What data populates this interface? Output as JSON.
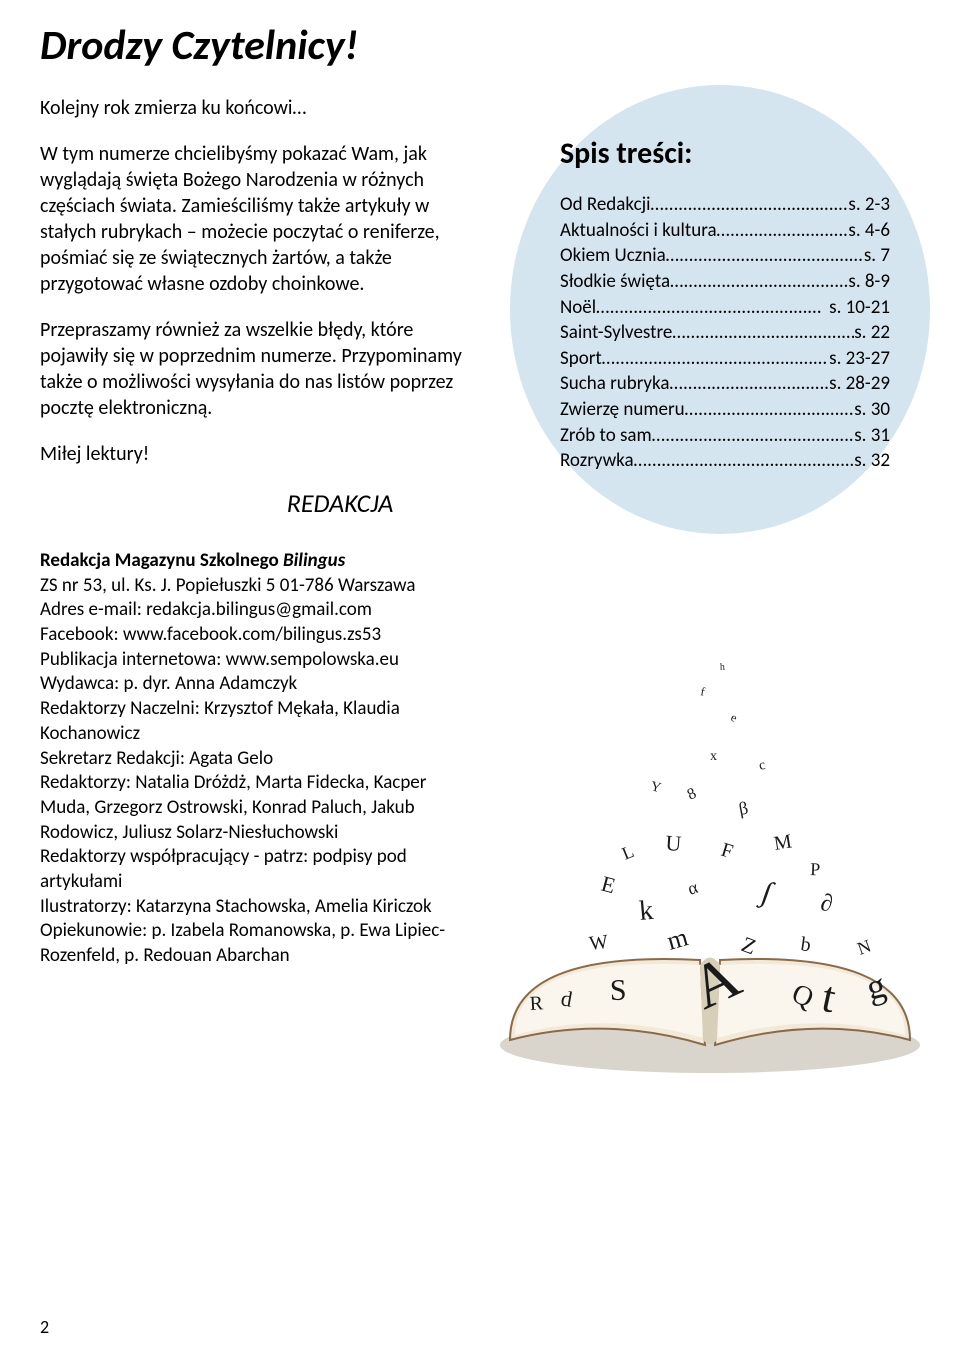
{
  "header": {
    "title": "Drodzy Czytelnicy!"
  },
  "intro": {
    "p1": "Kolejny rok zmierza ku końcowi…",
    "p2": "W tym numerze chcielibyśmy pokazać Wam, jak wyglądają święta Bożego Narodzenia w różnych częściach świata. Zamieściliśmy także artykuły w stałych rubrykach – możecie poczytać o reniferze, pośmiać się ze świątecznych żartów, a także przygotować własne ozdoby choinkowe.",
    "p3": "Przepraszamy również za wszelkie błędy, które pojawiły się w poprzednim numerze. Przypominamy także o możliwości wysyłania do nas listów poprzez pocztę elektroniczną.",
    "p4": "Miłej lektury!",
    "signature": "REDAKCJA"
  },
  "toc": {
    "title": "Spis treści:",
    "items": [
      {
        "label": "Od Redakcji",
        "page": "s. 2-3"
      },
      {
        "label": "Aktualności i kultura",
        "page": "s. 4-6"
      },
      {
        "label": "Okiem Ucznia",
        "page": "s. 7"
      },
      {
        "label": "Słodkie święta",
        "page": "s. 8-9"
      },
      {
        "label": "Noël",
        "page": "s. 10-21"
      },
      {
        "label": "Saint-Sylvestre",
        "page": "s. 22"
      },
      {
        "label": "Sport",
        "page": "s. 23-27"
      },
      {
        "label": "Sucha rubryka",
        "page": "s. 28-29"
      },
      {
        "label": "Zwierzę numeru",
        "page": "s. 30"
      },
      {
        "label": "Zrób to sam",
        "page": "s. 31"
      },
      {
        "label": "Rozrywka",
        "page": "s. 32"
      }
    ]
  },
  "credits": {
    "heading_plain": "Redakcja Magazynu Szkolnego ",
    "heading_ital": "Bilingus",
    "lines": [
      "ZS nr 53, ul. Ks. J. Popiełuszki 5 01-786 Warszawa",
      "Adres e-mail:  redakcja.bilingus@gmail.com",
      "Facebook:  www.facebook.com/bilingus.zs53",
      "Publikacja internetowa:  www.sempolowska.eu",
      "Wydawca:  p. dyr. Anna Adamczyk",
      "Redaktorzy Naczelni: Krzysztof Mękała, Klaudia Kochanowicz",
      "Sekretarz Redakcji: Agata Gelo",
      "Redaktorzy: Natalia Dróżdż, Marta Fidecka, Kacper Muda, Grzegorz Ostrowski, Konrad Paluch, Jakub Rodowicz, Juliusz Solarz-Niesłuchowski",
      "Redaktorzy współpracujący - patrz: podpisy pod artykułami",
      "Ilustratorzy:  Katarzyna Stachowska, Amelia Kiriczok",
      "Opiekunowie: p. Izabela Romanowska, p. Ewa Lipiec-Rozenfeld, p. Redouan Abarchan"
    ]
  },
  "illustration": {
    "book_cover": "#f2e9d8",
    "book_page": "#faf6ed",
    "book_edge": "#8a6a48",
    "letters": [
      "A",
      "t",
      "S",
      "g",
      "Q",
      "d",
      "R",
      "m",
      "Z",
      "b",
      "k",
      "α",
      "∫",
      "∂",
      "W",
      "N",
      "F",
      "U",
      "M",
      "L",
      "E",
      "P",
      "β",
      "8",
      "Y",
      "x",
      "c",
      "e",
      "f",
      "h"
    ]
  },
  "page_number": "2",
  "colors": {
    "toc_bg": "#d4e5ef",
    "text": "#000000",
    "bg": "#ffffff"
  }
}
